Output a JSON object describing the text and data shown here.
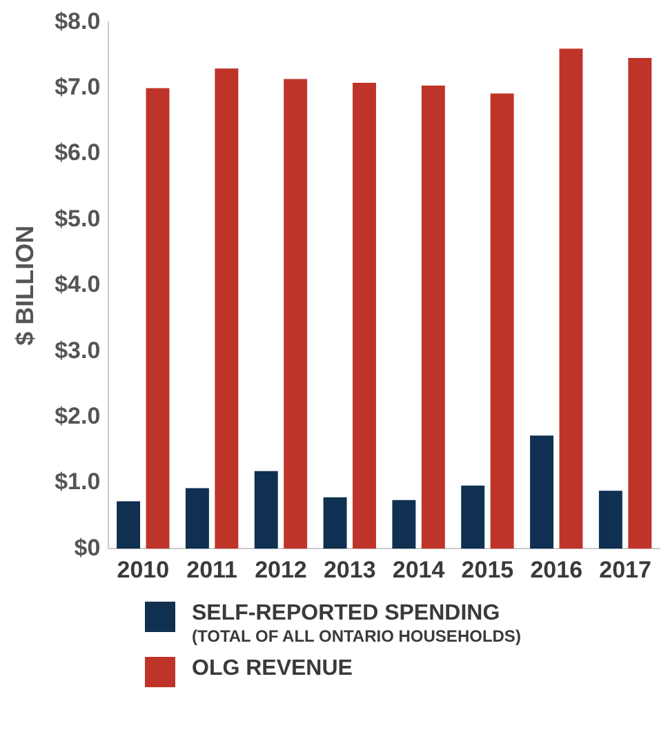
{
  "chart_data": {
    "type": "bar",
    "ylabel": "$ BILLION",
    "categories": [
      "2010",
      "2011",
      "2012",
      "2013",
      "2014",
      "2015",
      "2016",
      "2017"
    ],
    "series": [
      {
        "name": "SELF-REPORTED SPENDING (TOTAL OF ALL ONTARIO HOUSEHOLDS)",
        "color": "#0f3050",
        "values": [
          0.72,
          0.92,
          1.18,
          0.78,
          0.74,
          0.96,
          1.72,
          0.88
        ]
      },
      {
        "name": "OLG REVENUE",
        "color": "#bf3429",
        "values": [
          7.0,
          7.3,
          7.14,
          7.08,
          7.04,
          6.92,
          7.6,
          7.46
        ]
      }
    ],
    "ylim": [
      0,
      8
    ],
    "yticks": [
      {
        "value": 0,
        "label": "$0"
      },
      {
        "value": 1,
        "label": "$1.0"
      },
      {
        "value": 2,
        "label": "$2.0"
      },
      {
        "value": 3,
        "label": "$3.0"
      },
      {
        "value": 4,
        "label": "$4.0"
      },
      {
        "value": 5,
        "label": "$5.0"
      },
      {
        "value": 6,
        "label": "$6.0"
      },
      {
        "value": 7,
        "label": "$7.0"
      },
      {
        "value": 8,
        "label": "$8.0"
      }
    ],
    "grid": false,
    "legend": "bottom"
  }
}
